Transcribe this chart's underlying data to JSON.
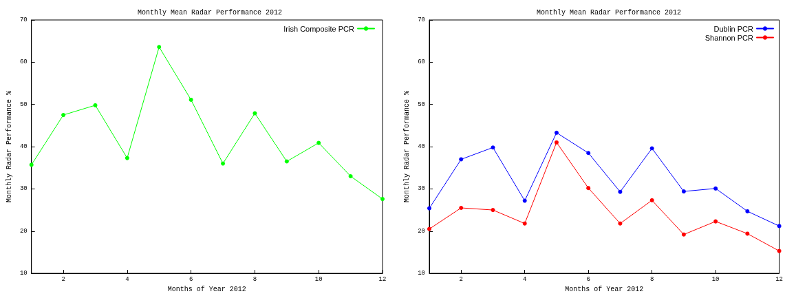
{
  "chart_data": [
    {
      "type": "line",
      "title": "Monthly Mean Radar Performance 2012",
      "xlabel": "Months of Year 2012",
      "ylabel": "Monthly Radar Performance %",
      "x": [
        1,
        2,
        3,
        4,
        5,
        6,
        7,
        8,
        9,
        10,
        11,
        12
      ],
      "series": [
        {
          "name": "Irish Composite PCR",
          "color": "#00ff00",
          "values": [
            35.7,
            47.5,
            49.8,
            37.3,
            63.6,
            51.1,
            36,
            47.9,
            36.5,
            40.9,
            33,
            27.6
          ]
        }
      ],
      "xlim": [
        1,
        12
      ],
      "xticks": [
        2,
        4,
        6,
        8,
        10,
        12
      ],
      "ylim": [
        10,
        70
      ],
      "yticks": [
        10,
        20,
        30,
        40,
        50,
        60,
        70
      ],
      "grid": false,
      "legend": "top right",
      "marker": "circle",
      "line_style": "solid"
    },
    {
      "type": "line",
      "title": "Monthly Mean Radar Performance 2012",
      "xlabel": "Months of Year 2012",
      "ylabel": "Monthly Radar Performance %",
      "x": [
        1,
        2,
        3,
        4,
        5,
        6,
        7,
        8,
        9,
        10,
        11,
        12
      ],
      "series": [
        {
          "name": "Dublin PCR",
          "color": "#0000ff",
          "values": [
            25.4,
            37,
            39.8,
            27.2,
            43.3,
            38.5,
            29.3,
            39.6,
            29.4,
            30.1,
            24.7,
            21.2
          ]
        },
        {
          "name": "Shannon PCR",
          "color": "#ff0000",
          "values": [
            20.5,
            25.5,
            25,
            21.8,
            41,
            30.2,
            21.8,
            27.3,
            19.2,
            22.3,
            19.4,
            15.3
          ]
        }
      ],
      "xlim": [
        1,
        12
      ],
      "xticks": [
        2,
        4,
        6,
        8,
        10,
        12
      ],
      "ylim": [
        10,
        70
      ],
      "yticks": [
        10,
        20,
        30,
        40,
        50,
        60,
        70
      ],
      "grid": false,
      "legend": "top right",
      "marker": "circle",
      "line_style": "solid"
    }
  ]
}
